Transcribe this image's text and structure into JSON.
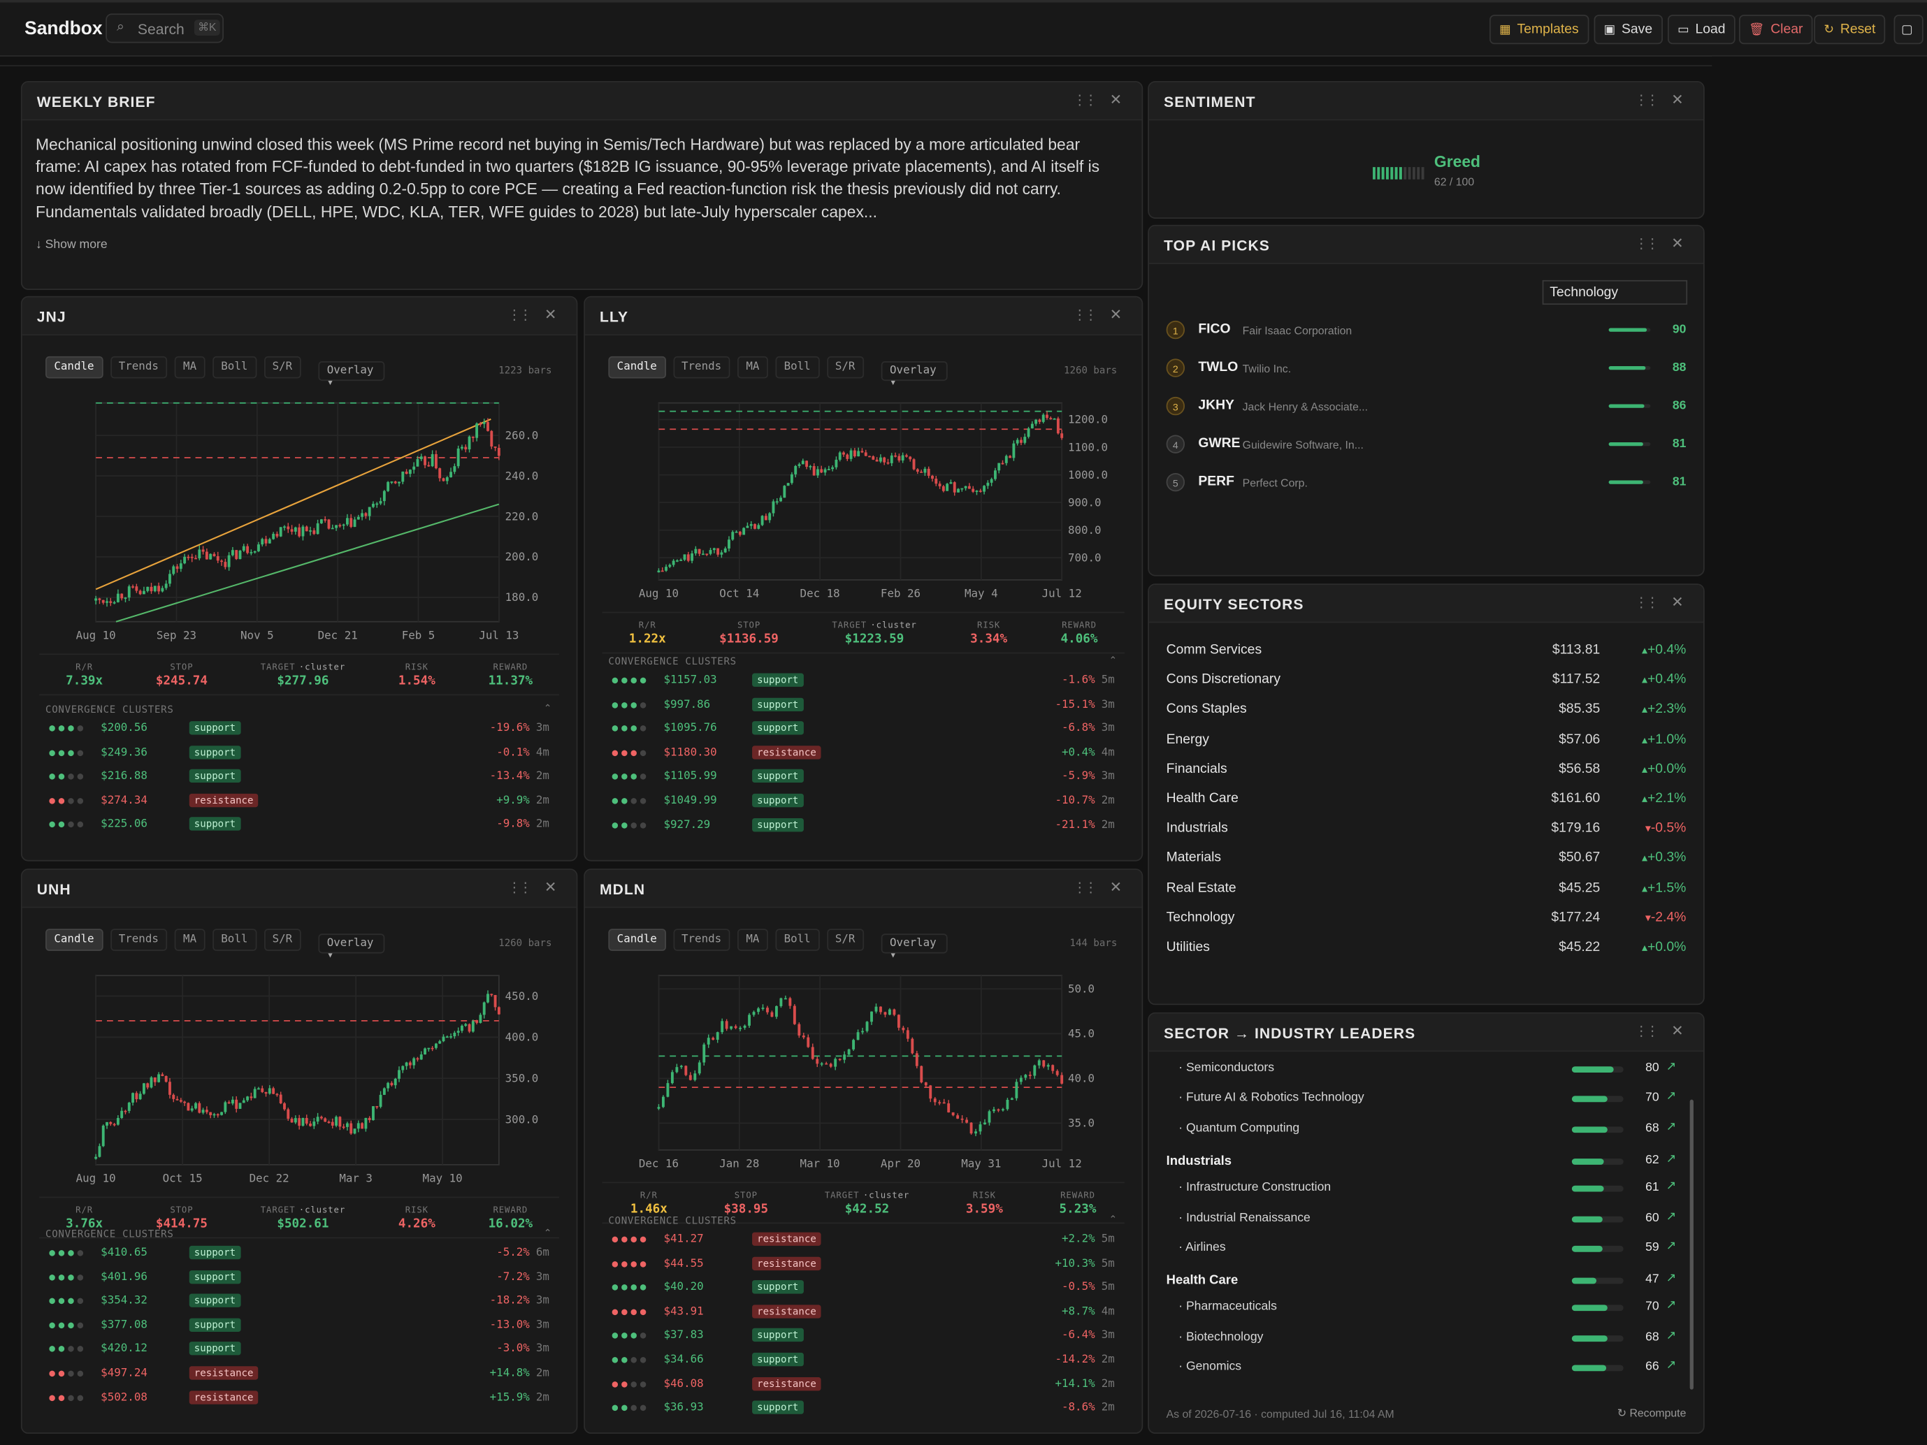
{
  "app": {
    "title": "Sandbox",
    "search_placeholder": "Search",
    "search_shortcut": "⌘K",
    "buttons": {
      "templates": "Templates",
      "save": "Save",
      "load": "Load",
      "clear": "Clear",
      "reset": "Reset"
    }
  },
  "colors": {
    "green": "#4ec07c",
    "red": "#ef6464",
    "yellow": "#f0c040",
    "accent": "#e0b44a"
  },
  "brief": {
    "title": "WEEKLY BRIEF",
    "text": "Mechanical positioning unwind closed this week (MS Prime record net buying in Semis/Tech Hardware) but was replaced by a more articulated bear frame: AI capex has rotated from FCF-funded to debt-funded in two quarters ($182B IG issuance, 90-95% leverage private placements), and AI itself is now identified by three Tier-1 sources as adding 0.2-0.5pp to core PCE — creating a Fed reaction-function risk the thesis previously did not carry. Fundamentals validated broadly (DELL, HPE, WDC, KLA, TER, WFE guides to 2028) but late-July hyperscaler capex...",
    "show_more": "Show more"
  },
  "chart_tabs": [
    "Candle",
    "Trends",
    "MA",
    "Boll",
    "S/R"
  ],
  "overlay_label": "Overlay",
  "metric_labels": {
    "rr": "R/R",
    "stop": "STOP",
    "target": "TARGET",
    "target_sub": "·cluster",
    "risk": "RISK",
    "reward": "REWARD"
  },
  "cluster_header": "CONVERGENCE CLUSTERS",
  "charts": [
    {
      "ticker": "JNJ",
      "bars": "1223 bars",
      "x_ticks": [
        "Aug 10",
        "Sep 23",
        "Nov 5",
        "Dec 21",
        "Feb 5",
        "Jul 13"
      ],
      "y_ticks": [
        "260.0",
        "240.0",
        "220.0",
        "200.0",
        "180.0"
      ],
      "ylim": [
        168,
        276
      ],
      "path": [
        [
          0,
          178
        ],
        [
          0.04,
          180
        ],
        [
          0.08,
          183
        ],
        [
          0.12,
          182
        ],
        [
          0.16,
          186
        ],
        [
          0.2,
          195
        ],
        [
          0.24,
          202
        ],
        [
          0.28,
          200
        ],
        [
          0.32,
          198
        ],
        [
          0.36,
          203
        ],
        [
          0.4,
          206
        ],
        [
          0.44,
          212
        ],
        [
          0.48,
          215
        ],
        [
          0.52,
          212
        ],
        [
          0.56,
          216
        ],
        [
          0.6,
          213
        ],
        [
          0.64,
          218
        ],
        [
          0.68,
          222
        ],
        [
          0.72,
          233
        ],
        [
          0.76,
          240
        ],
        [
          0.8,
          246
        ],
        [
          0.84,
          248
        ],
        [
          0.86,
          236
        ],
        [
          0.88,
          240
        ],
        [
          0.9,
          252
        ],
        [
          0.93,
          257
        ],
        [
          0.95,
          268
        ],
        [
          0.97,
          262
        ],
        [
          1,
          248
        ]
      ],
      "levels": {
        "green": 276,
        "red": 249
      },
      "trends": [
        {
          "color": "#e8a33c",
          "p": [
            [
              0,
              184
            ],
            [
              0.98,
              268
            ]
          ]
        },
        {
          "color": "#55b86a",
          "p": [
            [
              0.05,
              168
            ],
            [
              1,
              226
            ]
          ]
        }
      ],
      "metrics": {
        "rr": "7.39x",
        "stop": "$245.74",
        "target": "$277.96",
        "risk": "1.54%",
        "reward": "11.37%",
        "rr_color": "green"
      },
      "clusters": [
        {
          "strength": 3,
          "price": "$200.56",
          "type": "support",
          "pct": "-19.6%",
          "age": "3m"
        },
        {
          "strength": 3,
          "price": "$249.36",
          "type": "support",
          "pct": "-0.1%",
          "age": "4m"
        },
        {
          "strength": 2,
          "price": "$216.88",
          "type": "support",
          "pct": "-13.4%",
          "age": "2m"
        },
        {
          "strength": 2,
          "price": "$274.34",
          "type": "resistance",
          "pct": "+9.9%",
          "age": "2m"
        },
        {
          "strength": 2,
          "price": "$225.06",
          "type": "support",
          "pct": "-9.8%",
          "age": "2m"
        }
      ]
    },
    {
      "ticker": "LLY",
      "bars": "1260 bars",
      "x_ticks": [
        "Aug 10",
        "Oct 14",
        "Dec 18",
        "Feb 26",
        "May 4",
        "Jul 12"
      ],
      "y_ticks": [
        "1200.0",
        "1100.0",
        "1000.0",
        "900.0",
        "800.0",
        "700.0"
      ],
      "ylim": [
        620,
        1260
      ],
      "path": [
        [
          0,
          650
        ],
        [
          0.05,
          690
        ],
        [
          0.1,
          720
        ],
        [
          0.15,
          730
        ],
        [
          0.2,
          800
        ],
        [
          0.25,
          820
        ],
        [
          0.3,
          920
        ],
        [
          0.35,
          1040
        ],
        [
          0.4,
          1000
        ],
        [
          0.45,
          1070
        ],
        [
          0.5,
          1080
        ],
        [
          0.55,
          1050
        ],
        [
          0.6,
          1060
        ],
        [
          0.65,
          1020
        ],
        [
          0.7,
          960
        ],
        [
          0.75,
          950
        ],
        [
          0.8,
          940
        ],
        [
          0.85,
          1040
        ],
        [
          0.9,
          1130
        ],
        [
          0.93,
          1190
        ],
        [
          0.96,
          1230
        ],
        [
          1,
          1150
        ]
      ],
      "levels": {
        "green": 1230,
        "red": 1165
      },
      "trends": [],
      "metrics": {
        "rr": "1.22x",
        "stop": "$1136.59",
        "target": "$1223.59",
        "risk": "3.34%",
        "reward": "4.06%",
        "rr_color": "yellow"
      },
      "clusters": [
        {
          "strength": 4,
          "price": "$1157.03",
          "type": "support",
          "pct": "-1.6%",
          "age": "5m"
        },
        {
          "strength": 3,
          "price": "$997.86",
          "type": "support",
          "pct": "-15.1%",
          "age": "3m"
        },
        {
          "strength": 3,
          "price": "$1095.76",
          "type": "support",
          "pct": "-6.8%",
          "age": "3m"
        },
        {
          "strength": 3,
          "price": "$1180.30",
          "type": "resistance",
          "pct": "+0.4%",
          "age": "4m"
        },
        {
          "strength": 3,
          "price": "$1105.99",
          "type": "support",
          "pct": "-5.9%",
          "age": "3m"
        },
        {
          "strength": 2,
          "price": "$1049.99",
          "type": "support",
          "pct": "-10.7%",
          "age": "2m"
        },
        {
          "strength": 2,
          "price": "$927.29",
          "type": "support",
          "pct": "-21.1%",
          "age": "2m"
        }
      ]
    },
    {
      "ticker": "UNH",
      "bars": "1260 bars",
      "x_ticks": [
        "Aug 10",
        "Oct 15",
        "Dec 22",
        "Mar 3",
        "May 10"
      ],
      "y_ticks": [
        "450.0",
        "400.0",
        "350.0",
        "300.0"
      ],
      "ylim": [
        245,
        475
      ],
      "path": [
        [
          0,
          255
        ],
        [
          0.02,
          290
        ],
        [
          0.05,
          300
        ],
        [
          0.08,
          320
        ],
        [
          0.12,
          340
        ],
        [
          0.16,
          350
        ],
        [
          0.2,
          320
        ],
        [
          0.25,
          315
        ],
        [
          0.3,
          310
        ],
        [
          0.35,
          320
        ],
        [
          0.4,
          335
        ],
        [
          0.45,
          330
        ],
        [
          0.48,
          300
        ],
        [
          0.52,
          295
        ],
        [
          0.56,
          298
        ],
        [
          0.6,
          300
        ],
        [
          0.64,
          285
        ],
        [
          0.68,
          305
        ],
        [
          0.72,
          335
        ],
        [
          0.76,
          360
        ],
        [
          0.8,
          380
        ],
        [
          0.84,
          390
        ],
        [
          0.88,
          405
        ],
        [
          0.92,
          410
        ],
        [
          0.95,
          420
        ],
        [
          0.97,
          460
        ],
        [
          1,
          430
        ]
      ],
      "levels": {
        "red": 420
      },
      "trends": [],
      "metrics": {
        "rr": "3.76x",
        "stop": "$414.75",
        "target": "$502.61",
        "risk": "4.26%",
        "reward": "16.02%",
        "rr_color": "green"
      },
      "clusters": [
        {
          "strength": 3,
          "price": "$410.65",
          "type": "support",
          "pct": "-5.2%",
          "age": "6m"
        },
        {
          "strength": 3,
          "price": "$401.96",
          "type": "support",
          "pct": "-7.2%",
          "age": "3m"
        },
        {
          "strength": 3,
          "price": "$354.32",
          "type": "support",
          "pct": "-18.2%",
          "age": "3m"
        },
        {
          "strength": 3,
          "price": "$377.08",
          "type": "support",
          "pct": "-13.0%",
          "age": "3m"
        },
        {
          "strength": 2,
          "price": "$420.12",
          "type": "support",
          "pct": "-3.0%",
          "age": "3m"
        },
        {
          "strength": 2,
          "price": "$497.24",
          "type": "resistance",
          "pct": "+14.8%",
          "age": "2m"
        },
        {
          "strength": 2,
          "price": "$502.08",
          "type": "resistance",
          "pct": "+15.9%",
          "age": "2m"
        }
      ]
    },
    {
      "ticker": "MDLN",
      "bars": "144 bars",
      "x_ticks": [
        "Dec 16",
        "Jan 28",
        "Mar 10",
        "Apr 20",
        "May 31",
        "Jul 12"
      ],
      "y_ticks": [
        "50.0",
        "45.0",
        "40.0",
        "35.0"
      ],
      "ylim": [
        32,
        51.5
      ],
      "path": [
        [
          0,
          37
        ],
        [
          0.04,
          42
        ],
        [
          0.08,
          40
        ],
        [
          0.12,
          44
        ],
        [
          0.16,
          46
        ],
        [
          0.2,
          45
        ],
        [
          0.24,
          48
        ],
        [
          0.28,
          47
        ],
        [
          0.31,
          50
        ],
        [
          0.34,
          46
        ],
        [
          0.38,
          42
        ],
        [
          0.42,
          41
        ],
        [
          0.46,
          43
        ],
        [
          0.5,
          45
        ],
        [
          0.54,
          48
        ],
        [
          0.58,
          47
        ],
        [
          0.62,
          44
        ],
        [
          0.66,
          39
        ],
        [
          0.7,
          37
        ],
        [
          0.74,
          36
        ],
        [
          0.78,
          34
        ],
        [
          0.82,
          36
        ],
        [
          0.86,
          37
        ],
        [
          0.9,
          40
        ],
        [
          0.93,
          41
        ],
        [
          0.96,
          42
        ],
        [
          1,
          39
        ]
      ],
      "levels": {
        "green": 42.5,
        "red": 39.0
      },
      "trends": [],
      "metrics": {
        "rr": "1.46x",
        "stop": "$38.95",
        "target": "$42.52",
        "risk": "3.59%",
        "reward": "5.23%",
        "rr_color": "yellow"
      },
      "clusters": [
        {
          "strength": 4,
          "price": "$41.27",
          "type": "resistance",
          "pct": "+2.2%",
          "age": "5m"
        },
        {
          "strength": 4,
          "price": "$44.55",
          "type": "resistance",
          "pct": "+10.3%",
          "age": "5m"
        },
        {
          "strength": 4,
          "price": "$40.20",
          "type": "support",
          "pct": "-0.5%",
          "age": "5m"
        },
        {
          "strength": 4,
          "price": "$43.91",
          "type": "resistance",
          "pct": "+8.7%",
          "age": "4m"
        },
        {
          "strength": 3,
          "price": "$37.83",
          "type": "support",
          "pct": "-6.4%",
          "age": "3m"
        },
        {
          "strength": 2,
          "price": "$34.66",
          "type": "support",
          "pct": "-14.2%",
          "age": "2m"
        },
        {
          "strength": 2,
          "price": "$46.08",
          "type": "resistance",
          "pct": "+14.1%",
          "age": "2m"
        },
        {
          "strength": 2,
          "price": "$36.93",
          "type": "support",
          "pct": "-8.6%",
          "age": "2m"
        }
      ]
    }
  ],
  "sentiment": {
    "title": "SENTIMENT",
    "label": "Greed",
    "score_text": "62 / 100",
    "score": 62
  },
  "top_picks": {
    "title": "TOP AI PICKS",
    "filter": "Technology",
    "items": [
      {
        "rank": "1",
        "ticker": "FICO",
        "name": "Fair Isaac Corporation",
        "score": "90"
      },
      {
        "rank": "2",
        "ticker": "TWLO",
        "name": "Twilio Inc.",
        "score": "88"
      },
      {
        "rank": "3",
        "ticker": "JKHY",
        "name": "Jack Henry & Associate...",
        "score": "86"
      },
      {
        "rank": "4",
        "ticker": "GWRE",
        "name": "Guidewire Software, In...",
        "score": "81"
      },
      {
        "rank": "5",
        "ticker": "PERF",
        "name": "Perfect Corp.",
        "score": "81"
      }
    ]
  },
  "sectors": {
    "title": "EQUITY SECTORS",
    "items": [
      {
        "name": "Comm Services",
        "price": "$113.81",
        "change": "+0.4%",
        "dir": "up"
      },
      {
        "name": "Cons Discretionary",
        "price": "$117.52",
        "change": "+0.4%",
        "dir": "up"
      },
      {
        "name": "Cons Staples",
        "price": "$85.35",
        "change": "+2.3%",
        "dir": "up"
      },
      {
        "name": "Energy",
        "price": "$57.06",
        "change": "+1.0%",
        "dir": "up"
      },
      {
        "name": "Financials",
        "price": "$56.58",
        "change": "+0.0%",
        "dir": "up"
      },
      {
        "name": "Health Care",
        "price": "$161.60",
        "change": "+2.1%",
        "dir": "up"
      },
      {
        "name": "Industrials",
        "price": "$179.16",
        "change": "-0.5%",
        "dir": "down"
      },
      {
        "name": "Materials",
        "price": "$50.67",
        "change": "+0.3%",
        "dir": "up"
      },
      {
        "name": "Real Estate",
        "price": "$45.25",
        "change": "+1.5%",
        "dir": "up"
      },
      {
        "name": "Technology",
        "price": "$177.24",
        "change": "-2.4%",
        "dir": "down"
      },
      {
        "name": "Utilities",
        "price": "$45.22",
        "change": "+0.0%",
        "dir": "up"
      }
    ]
  },
  "leaders": {
    "title": "SECTOR → INDUSTRY LEADERS",
    "items": [
      {
        "name": "· Semiconductors",
        "value": "80",
        "level": "industry"
      },
      {
        "name": "· Future AI & Robotics Technology",
        "value": "70",
        "level": "industry"
      },
      {
        "name": "· Quantum Computing",
        "value": "68",
        "level": "industry"
      },
      {
        "name": "Industrials",
        "value": "62",
        "level": "sector"
      },
      {
        "name": "· Infrastructure Construction",
        "value": "61",
        "level": "industry"
      },
      {
        "name": "· Industrial Renaissance",
        "value": "60",
        "level": "industry"
      },
      {
        "name": "· Airlines",
        "value": "59",
        "level": "industry"
      },
      {
        "name": "Health Care",
        "value": "47",
        "level": "sector"
      },
      {
        "name": "· Pharmaceuticals",
        "value": "70",
        "level": "industry"
      },
      {
        "name": "· Biotechnology",
        "value": "68",
        "level": "industry"
      },
      {
        "name": "· Genomics",
        "value": "66",
        "level": "industry"
      }
    ],
    "footer": "As of 2026-07-16 · computed Jul 16, 11:04 AM",
    "recompute": "Recompute"
  }
}
